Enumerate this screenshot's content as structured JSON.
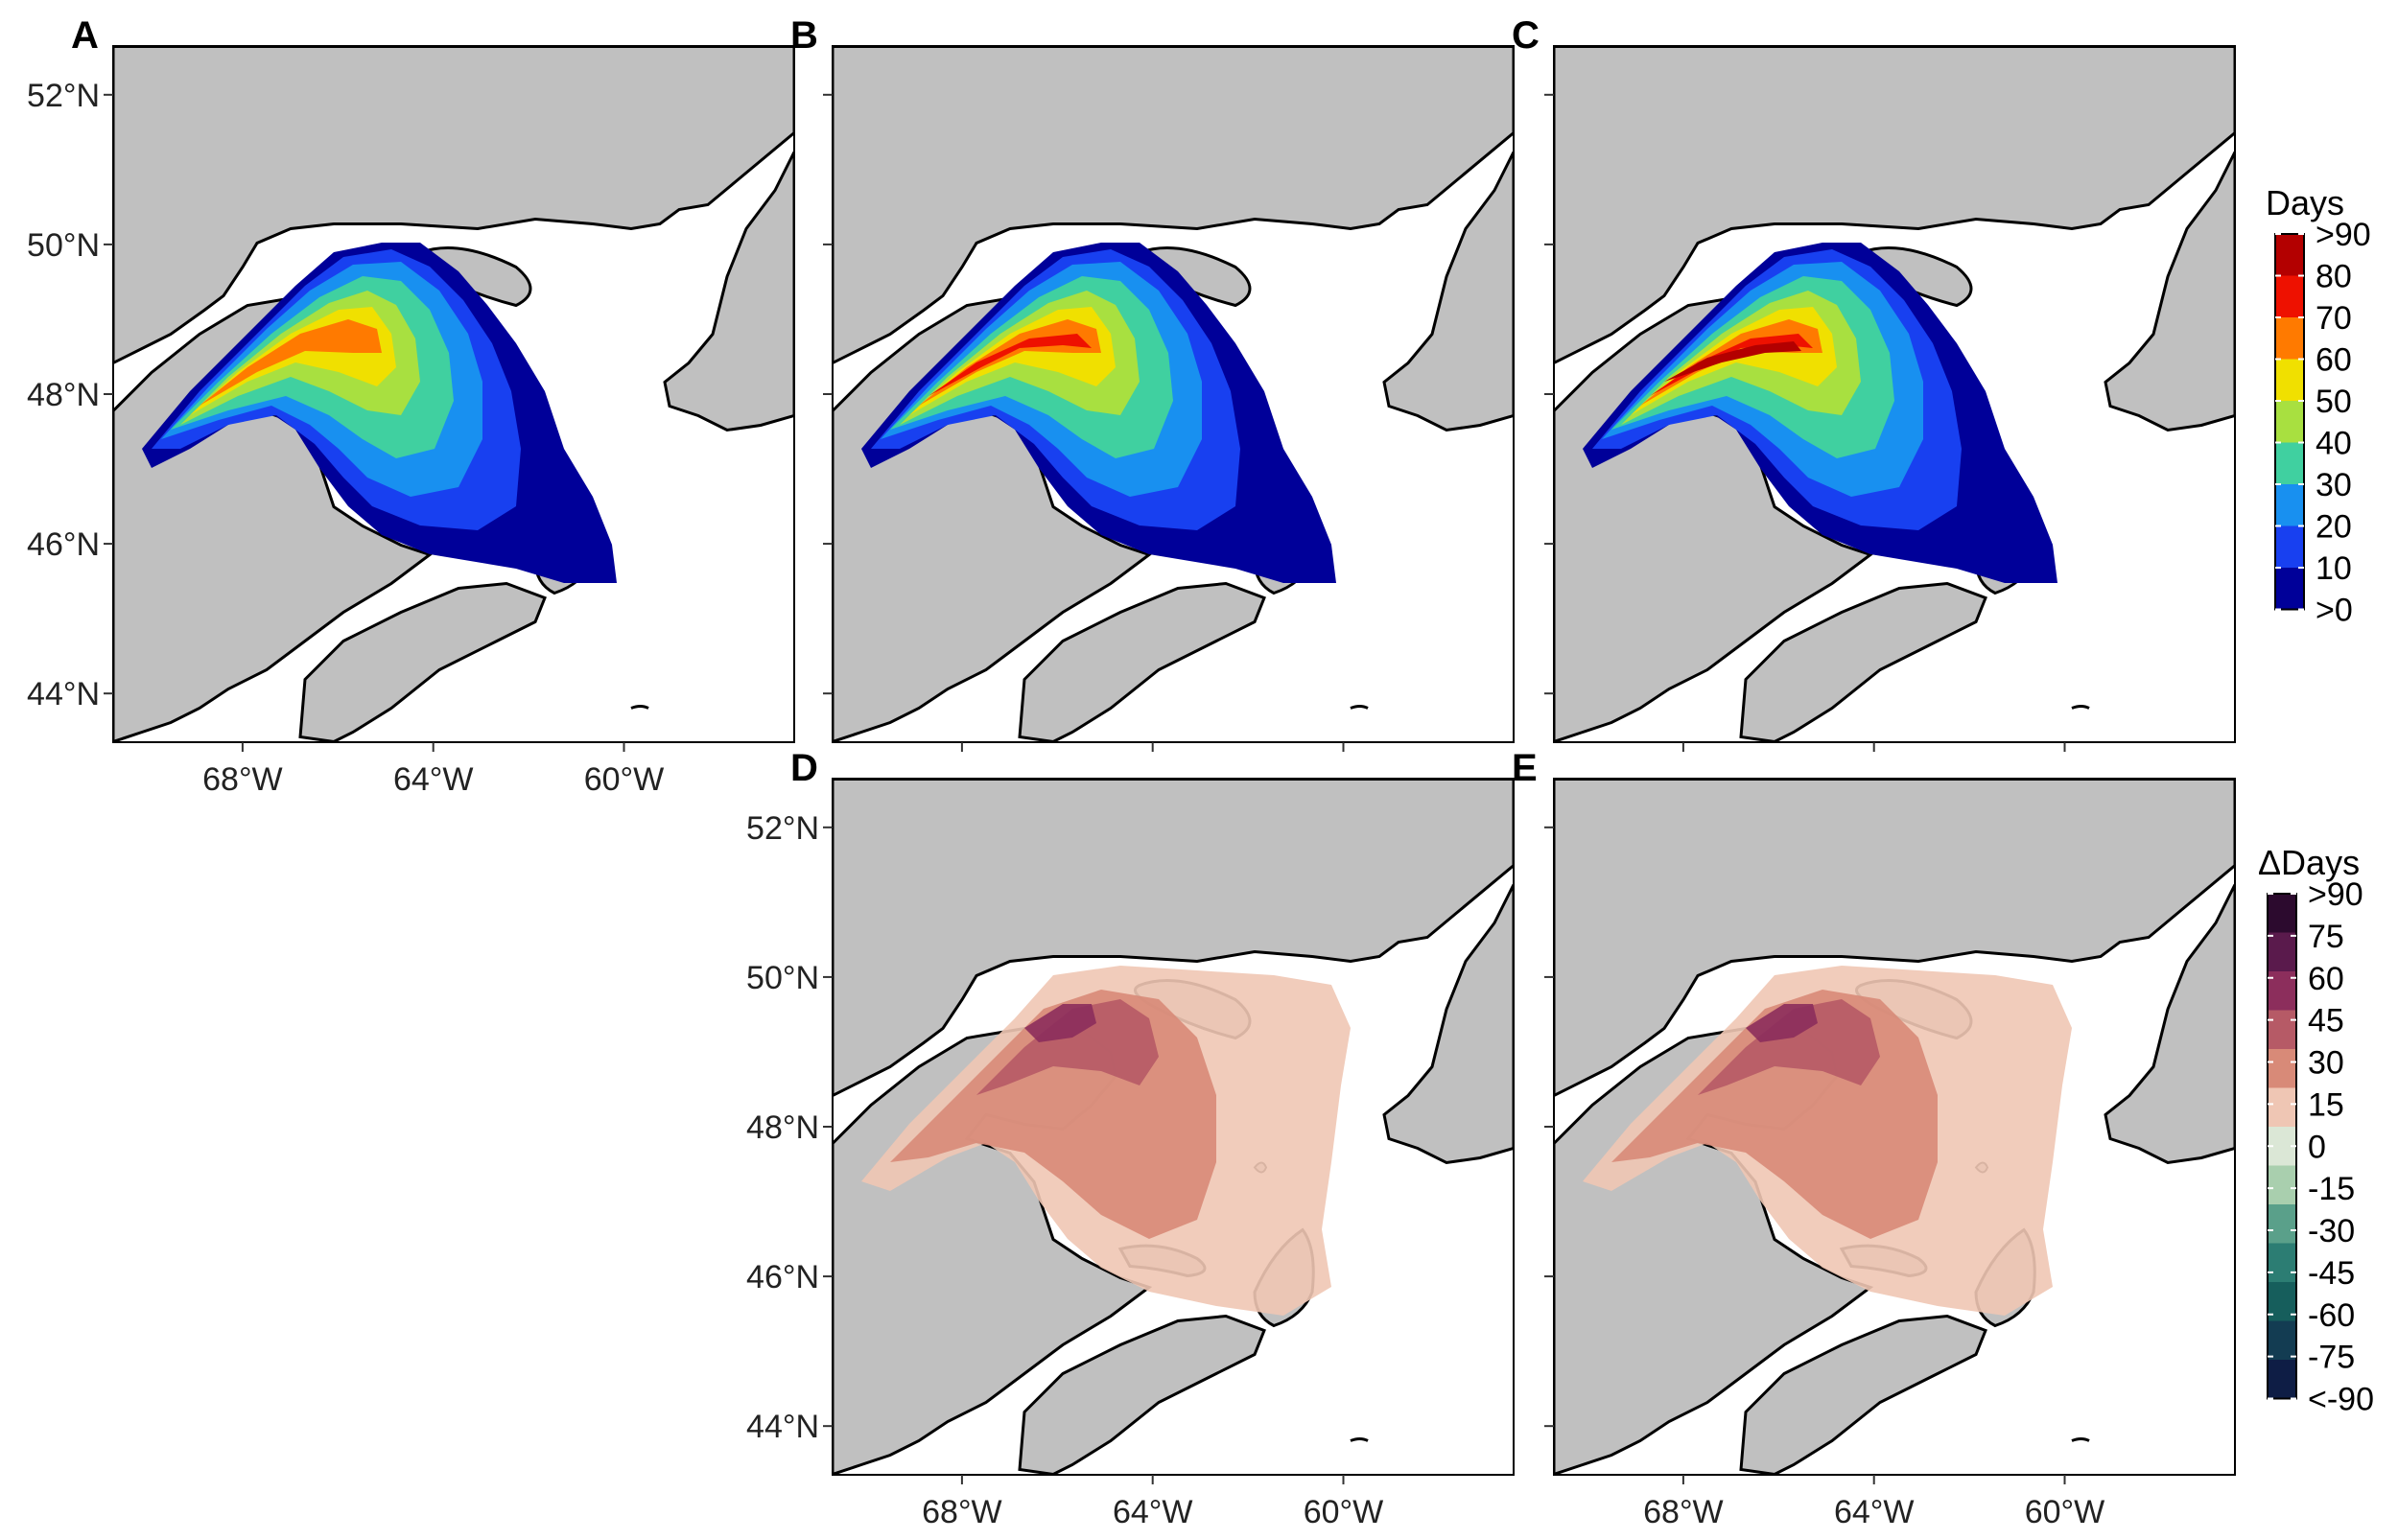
{
  "panels": [
    {
      "letter": "A",
      "map": "days",
      "intensity": 0.78
    },
    {
      "letter": "B",
      "map": "days",
      "intensity": 0.9
    },
    {
      "letter": "C",
      "map": "days",
      "intensity": 1.0
    },
    {
      "letter": "D",
      "map": "delta",
      "intensity": 0.9
    },
    {
      "letter": "E",
      "map": "delta",
      "intensity": 1.0
    }
  ],
  "latitude_labels": [
    "52°N",
    "50°N",
    "48°N",
    "46°N",
    "44°N"
  ],
  "longitude_labels": [
    "68°W",
    "64°W",
    "60°W"
  ],
  "legends": {
    "days": {
      "title": "Days",
      "labels": [
        ">90",
        "80",
        "70",
        "60",
        "50",
        "40",
        "30",
        "20",
        "10",
        ">0"
      ],
      "colors": [
        "#b30000",
        "#ee1100",
        "#ff7a00",
        "#f0e000",
        "#a8e040",
        "#40d0a0",
        "#1890f0",
        "#1840f0",
        "#000099"
      ]
    },
    "delta": {
      "title": "ΔDays",
      "labels": [
        ">90",
        "75",
        "60",
        "45",
        "30",
        "15",
        "0",
        "-15",
        "-30",
        "-45",
        "-60",
        "-75",
        "<-90"
      ],
      "colors": [
        "#2c0a2e",
        "#5a1a4c",
        "#8c2e5c",
        "#b65a66",
        "#d88a78",
        "#efc6b4",
        "#dbe7d6",
        "#a9cfae",
        "#5aa08a",
        "#2c7d73",
        "#165e5c",
        "#133c52",
        "#0e1d45"
      ]
    }
  },
  "colors": {
    "land": "#c0c0c0",
    "water": "#ffffff",
    "coast": "#000000"
  }
}
